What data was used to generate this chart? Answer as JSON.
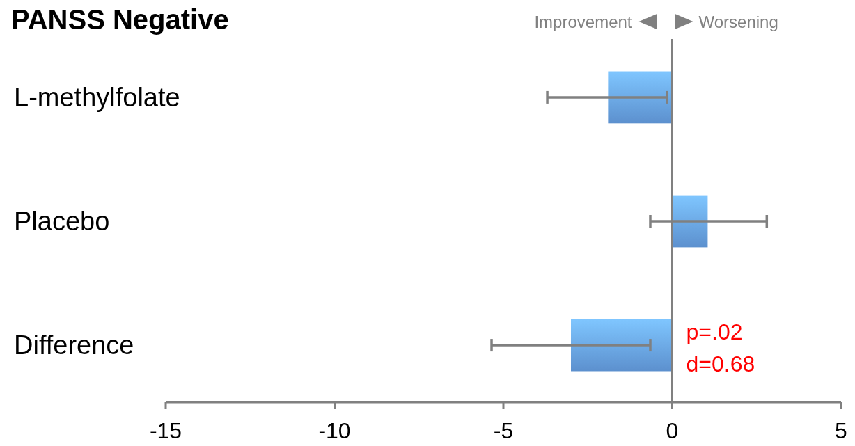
{
  "chart_data": {
    "type": "bar",
    "orientation": "horizontal",
    "title": "PANSS Negative",
    "categories": [
      "L-methylfolate",
      "Placebo",
      "Difference"
    ],
    "values": [
      -1.9,
      1.05,
      -3.0
    ],
    "errors": [
      [
        -3.7,
        -0.15
      ],
      [
        -0.65,
        2.8
      ],
      [
        -5.35,
        -0.65
      ]
    ],
    "color": "#6aa6ee",
    "xlim": [
      -15,
      5
    ],
    "xticks": [
      -15,
      -10,
      -5,
      0,
      5
    ],
    "ref_lines": [
      {
        "axis": "x",
        "value": 0,
        "color": "#808080"
      }
    ],
    "annotations": [
      "Improvement",
      "Worsening",
      {
        "text": "p=.02",
        "x": 0,
        "y": "Difference"
      },
      {
        "text": "d=0.68",
        "x": 0,
        "y": "Difference"
      }
    ],
    "grid": false
  }
}
